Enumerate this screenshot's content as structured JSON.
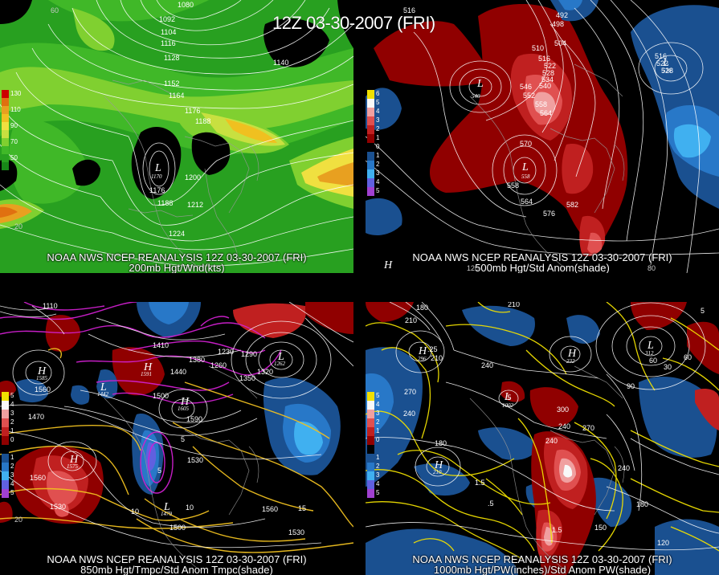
{
  "title": "12Z 03-30-2007 (FRI)",
  "panels": [
    {
      "caption_line1": "NOAA NWS NCEP REANALYSIS 12Z 03-30-2007 (FRI)",
      "caption_line2": "200mb Hgt/Wnd(kts)",
      "legend": [
        {
          "label": "130",
          "color": "#cc0000"
        },
        {
          "label": "",
          "color": "#e07010"
        },
        {
          "label": "110",
          "color": "#e8a020"
        },
        {
          "label": "",
          "color": "#f0c020"
        },
        {
          "label": "90",
          "color": "#f0e040"
        },
        {
          "label": "",
          "color": "#c8e040"
        },
        {
          "label": "70",
          "color": "#80d030"
        },
        {
          "label": "",
          "color": "#40b828"
        },
        {
          "label": "50",
          "color": "#28a020"
        },
        {
          "label": "",
          "color": "#188818"
        }
      ],
      "contour_labels": [
        "1080",
        "1092",
        "1104",
        "1116",
        "1128",
        "1140",
        "1152",
        "1164",
        "1176",
        "1188",
        "1176",
        "1188",
        "1200",
        "1212",
        "1224",
        "1170",
        "60",
        "20"
      ],
      "low_label": "1170"
    },
    {
      "caption_line1": "NOAA NWS NCEP REANALYSIS 12Z 03-30-2007 (FRI)",
      "caption_line2": "500mb Hgt/Std Anom(shade)",
      "legend": [
        {
          "label": "6",
          "color": "#f0e000"
        },
        {
          "label": "5",
          "color": "#f8f8f8"
        },
        {
          "label": "4",
          "color": "#f0a0a0"
        },
        {
          "label": "3",
          "color": "#e05050"
        },
        {
          "label": "2",
          "color": "#c02020"
        },
        {
          "label": "1",
          "color": "#900000"
        },
        {
          "label": "0",
          "color": "#000000"
        },
        {
          "label": "1",
          "color": "#1a5090"
        },
        {
          "label": "2",
          "color": "#2878c8"
        },
        {
          "label": "3",
          "color": "#40b0f0"
        },
        {
          "label": "4",
          "color": "#6060e0"
        },
        {
          "label": "5",
          "color": "#a040d0"
        }
      ],
      "contour_labels": [
        "516",
        "492",
        "498",
        "504",
        "510",
        "516",
        "522",
        "528",
        "534",
        "540",
        "546",
        "552",
        "558",
        "564",
        "570",
        "576",
        "582",
        "516",
        "522",
        "528",
        "540",
        "558",
        "564",
        "120",
        "80"
      ],
      "low_labels": [
        "540",
        "558",
        "516"
      ]
    },
    {
      "caption_line1": "NOAA NWS NCEP REANALYSIS 12Z 03-30-2007 (FRI)",
      "caption_line2": "850mb Hgt/Tmpc/Std Anom Tmpc(shade)",
      "legend": [
        {
          "label": "5",
          "color": "#f0e000"
        },
        {
          "label": "4",
          "color": "#f8f8f8"
        },
        {
          "label": "3",
          "color": "#f0a0a0"
        },
        {
          "label": "2",
          "color": "#e05050"
        },
        {
          "label": "1",
          "color": "#c02020"
        },
        {
          "label": "0",
          "color": "#900000"
        },
        {
          "label": "",
          "color": "#000000"
        },
        {
          "label": "1",
          "color": "#1a5090"
        },
        {
          "label": "2",
          "color": "#2878c8"
        },
        {
          "label": "3",
          "color": "#40b0f0"
        },
        {
          "label": "4",
          "color": "#6060e0"
        },
        {
          "label": "5",
          "color": "#a040d0"
        }
      ],
      "contour_labels": [
        "1110",
        "1410",
        "1380",
        "1440",
        "1290",
        "1260",
        "1230",
        "1350",
        "1320",
        "1260",
        "1560",
        "1470",
        "1500",
        "1590",
        "1530",
        "1560",
        "1530",
        "1560",
        "1530",
        "1500",
        "1560",
        "1590",
        "10",
        "15",
        "20",
        "5",
        "5",
        "10",
        "15",
        "20"
      ],
      "high_labels": [
        "1585",
        "1591",
        "1575",
        "1605"
      ],
      "low_labels": [
        "1442",
        "1479",
        "1562"
      ]
    },
    {
      "caption_line1": "NOAA NWS NCEP REANALYSIS 12Z 03-30-2007 (FRI)",
      "caption_line2": "1000mb Hgt/PW(inches)/Std Anom PW(shade)",
      "legend": [
        {
          "label": "5",
          "color": "#f0e000"
        },
        {
          "label": "4",
          "color": "#f8f8f8"
        },
        {
          "label": "3",
          "color": "#f0a0a0"
        },
        {
          "label": "2",
          "color": "#e05050"
        },
        {
          "label": "1",
          "color": "#c02020"
        },
        {
          "label": "0",
          "color": "#900000"
        },
        {
          "label": "",
          "color": "#000000"
        },
        {
          "label": "1",
          "color": "#1a5090"
        },
        {
          "label": "2",
          "color": "#2878c8"
        },
        {
          "label": "3",
          "color": "#40b0f0"
        },
        {
          "label": "4",
          "color": "#6060e0"
        },
        {
          "label": "5",
          "color": "#a040d0"
        }
      ],
      "contour_labels": [
        "180",
        "210",
        "240",
        "270",
        "210",
        "240",
        "300",
        "270",
        "240",
        "210",
        "180",
        "150",
        "120",
        "60",
        "30",
        "90",
        "1.5",
        "1.5",
        ".5",
        ".25",
        ".5",
        "1",
        "1.5",
        ".25",
        "5"
      ],
      "high_labels": [
        "296",
        "232",
        "210"
      ],
      "low_labels": [
        "312",
        "1002"
      ]
    }
  ]
}
